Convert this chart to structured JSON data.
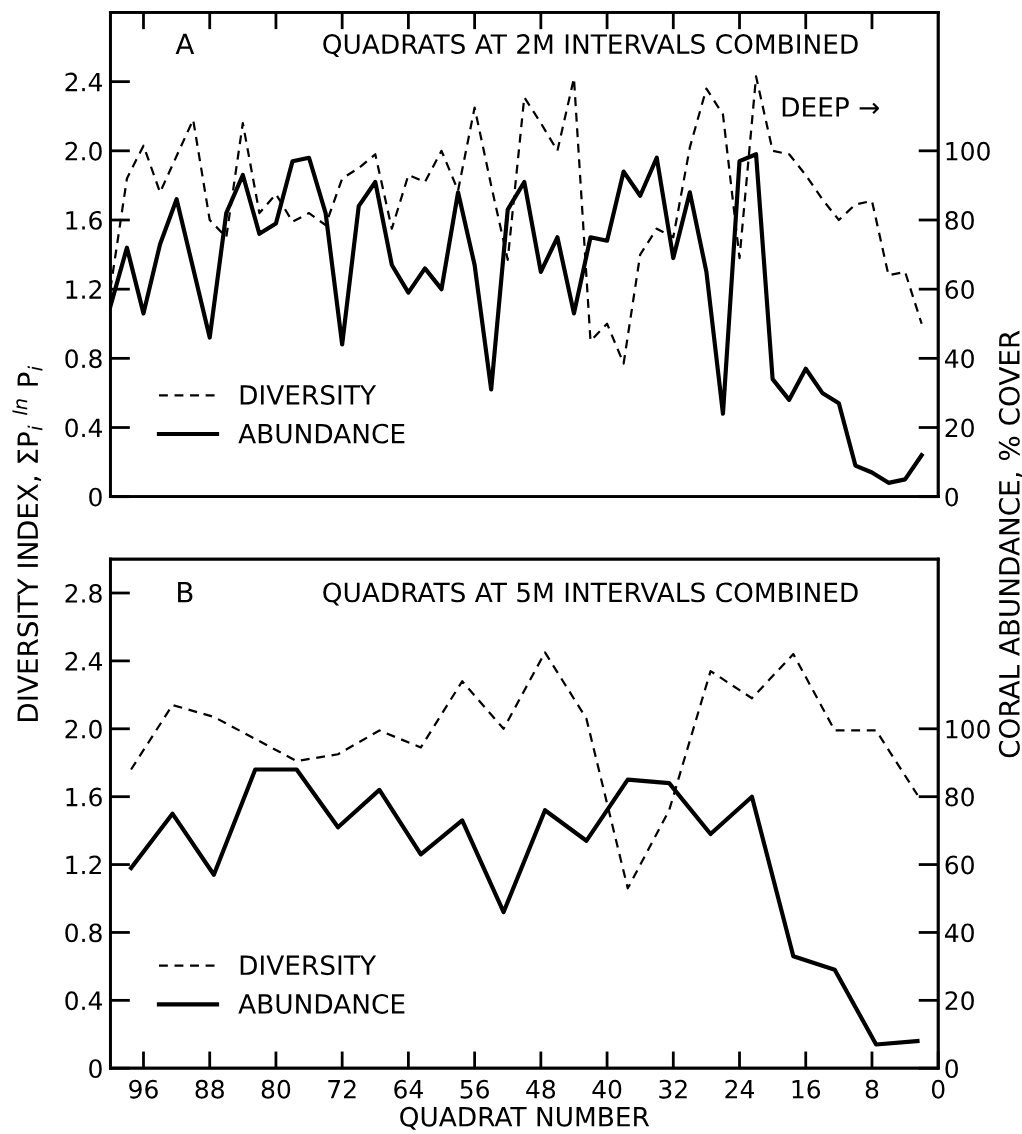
{
  "chart_data": [
    {
      "type": "line",
      "title": "QUADRATS AT 2M INTERVALS COMBINED",
      "annotations": [
        "A",
        "DEEP →"
      ],
      "ylabel": "DIVERSITY INDEX, ΣP$_{i}$ $^{ln}$ P$_{i}$",
      "y2label": "CORAL ABUNDANCE, % COVER",
      "xlim": [
        100,
        0
      ],
      "xticks": [
        {
          "value": 96,
          "label": null
        },
        {
          "value": 88,
          "label": null
        },
        {
          "value": 80,
          "label": null
        },
        {
          "value": 72,
          "label": null
        },
        {
          "value": 64,
          "label": null
        },
        {
          "value": 56,
          "label": null
        },
        {
          "value": 48,
          "label": null
        },
        {
          "value": 40,
          "label": null
        },
        {
          "value": 32,
          "label": null
        },
        {
          "value": 24,
          "label": null
        },
        {
          "value": 16,
          "label": null
        },
        {
          "value": 8,
          "label": null
        }
      ],
      "ylim": [
        0,
        2.8
      ],
      "yticks": [
        0,
        0.4,
        0.8,
        1.2,
        1.6,
        {
          "value": 2.0,
          "label": "2.0"
        },
        2.4
      ],
      "y2lim": [
        0,
        140
      ],
      "y2ticks": [
        0,
        20,
        40,
        60,
        80,
        100
      ],
      "tick_labels": "y",
      "legend": "bottom left",
      "grid": false,
      "series": [
        {
          "name": "DIVERSITY",
          "color": "#000000",
          "line_style": "dashed",
          "x": [
            100,
            98,
            96,
            94,
            92,
            90,
            88,
            86,
            84,
            82,
            80,
            78,
            76,
            74,
            72,
            70,
            68,
            66,
            64,
            62,
            60,
            58,
            56,
            54,
            52,
            50,
            48,
            46,
            44,
            42,
            40,
            38,
            36,
            34,
            32,
            30,
            28,
            26,
            24,
            22,
            20,
            18,
            16,
            14,
            12,
            10,
            8,
            6,
            4,
            2
          ],
          "values": [
            1.2,
            1.84,
            2.03,
            1.76,
            1.97,
            2.18,
            1.6,
            1.5,
            2.16,
            1.64,
            1.75,
            1.59,
            1.64,
            1.57,
            1.84,
            1.9,
            1.98,
            1.55,
            1.86,
            1.82,
            2.0,
            1.77,
            2.25,
            1.8,
            1.37,
            2.31,
            2.16,
            2.0,
            2.42,
            0.9,
            1.0,
            0.77,
            1.4,
            1.55,
            1.5,
            2.02,
            2.36,
            2.21,
            1.38,
            2.43,
            2.0,
            1.98,
            1.86,
            1.72,
            1.6,
            1.69,
            1.71,
            1.28,
            1.3,
            1.0
          ]
        },
        {
          "name": "ABUNDANCE",
          "color": "#000000",
          "line_style": "solid",
          "axis": "y2",
          "x": [
            100,
            98,
            96,
            94,
            92,
            88,
            86,
            84,
            82,
            80,
            78,
            76,
            74,
            72,
            70,
            68,
            66,
            64,
            62,
            60,
            58,
            56,
            54,
            52,
            50,
            48,
            46,
            44,
            42,
            40,
            38,
            36,
            34,
            32,
            30,
            28,
            26,
            24,
            22,
            20,
            18,
            16,
            14,
            12,
            10,
            8,
            6,
            4,
            2
          ],
          "values": [
            55,
            72,
            53,
            73,
            86,
            46,
            82,
            93,
            76,
            79,
            97,
            98,
            82,
            44,
            84,
            91,
            67,
            59,
            66,
            60,
            88,
            67,
            31,
            83,
            91,
            65,
            75,
            53,
            75,
            74,
            94,
            87,
            98,
            69,
            88,
            65,
            24,
            97,
            99,
            34,
            28,
            37,
            30,
            27,
            9,
            7,
            4,
            5,
            12
          ]
        }
      ]
    },
    {
      "type": "line",
      "title": "QUADRATS AT 5M INTERVALS COMBINED",
      "annotations": [
        "B"
      ],
      "xlabel": "QUADRAT NUMBER",
      "xlim": [
        100,
        0
      ],
      "xticks": [
        96,
        88,
        80,
        72,
        64,
        56,
        48,
        40,
        32,
        24,
        16,
        8,
        0
      ],
      "ylim": [
        0,
        3.0
      ],
      "yticks": [
        0,
        0.4,
        0.8,
        1.2,
        1.6,
        {
          "value": 2.0,
          "label": "2.0"
        },
        2.4,
        2.8
      ],
      "y2lim": [
        0,
        150
      ],
      "y2ticks": [
        0,
        20,
        40,
        60,
        80,
        100
      ],
      "legend": "bottom left",
      "grid": false,
      "series": [
        {
          "name": "DIVERSITY",
          "color": "#000000",
          "line_style": "dashed",
          "x": [
            97.5,
            92.5,
            87.5,
            82.5,
            77.5,
            72.5,
            67.5,
            62.5,
            57.5,
            52.5,
            47.5,
            42.5,
            37.5,
            32.5,
            27.5,
            22.5,
            17.5,
            12.5,
            7.5,
            2.5
          ],
          "values": [
            1.76,
            2.14,
            2.07,
            1.94,
            1.81,
            1.85,
            1.99,
            1.89,
            2.28,
            2.0,
            2.45,
            2.06,
            1.06,
            1.52,
            2.34,
            2.18,
            2.44,
            1.99,
            1.99,
            1.61
          ]
        },
        {
          "name": "ABUNDANCE",
          "color": "#000000",
          "line_style": "solid",
          "axis": "y2",
          "x": [
            97.5,
            92.5,
            87.5,
            82.5,
            77.5,
            72.5,
            67.5,
            62.5,
            57.5,
            52.5,
            47.5,
            42.5,
            37.5,
            32.5,
            27.5,
            22.5,
            17.5,
            12.5,
            7.5,
            2.5
          ],
          "values": [
            59,
            75,
            57,
            88,
            88,
            71,
            82,
            63,
            73,
            46,
            76,
            67,
            85,
            84,
            69,
            80,
            33,
            29,
            7,
            8
          ]
        }
      ]
    }
  ]
}
